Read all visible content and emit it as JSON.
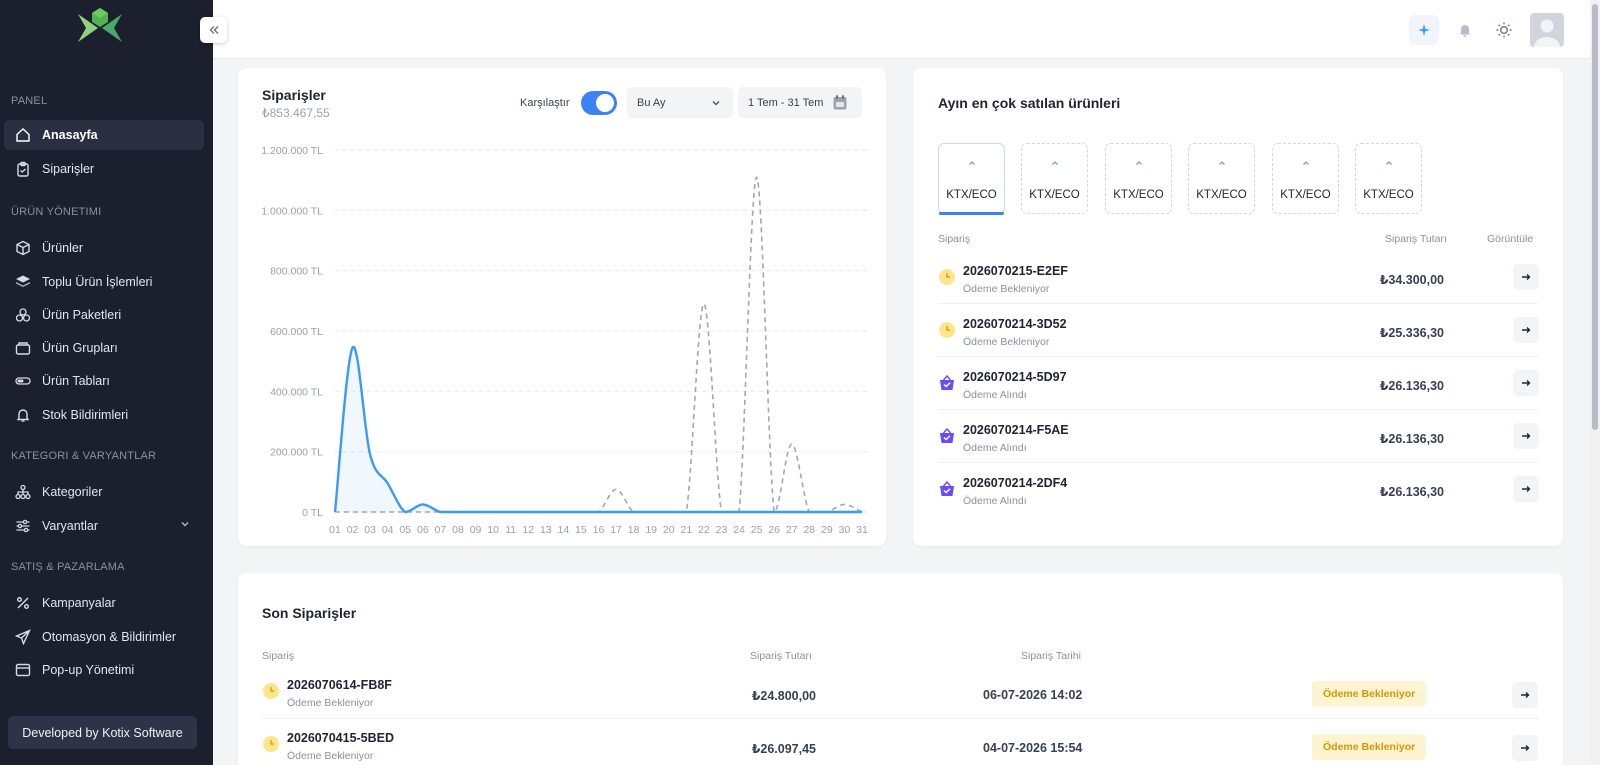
{
  "sidebar": {
    "sections": [
      {
        "label": "PANEL",
        "items": [
          {
            "label": "Anasayfa",
            "icon": "home-icon",
            "active": true
          },
          {
            "label": "Siparişler",
            "icon": "clipboard-icon"
          }
        ]
      },
      {
        "label": "ÜRÜN YÖNETIMI",
        "items": [
          {
            "label": "Ürünler",
            "icon": "box-icon"
          },
          {
            "label": "Toplu Ürün İşlemleri",
            "icon": "layers-icon"
          },
          {
            "label": "Ürün Paketleri",
            "icon": "package-icon"
          },
          {
            "label": "Ürün Grupları",
            "icon": "folder-icon"
          },
          {
            "label": "Ürün Tabları",
            "icon": "tabs-icon"
          },
          {
            "label": "Stok Bildirimleri",
            "icon": "bell-icon"
          }
        ]
      },
      {
        "label": "KATEGORI & VARYANTLAR",
        "items": [
          {
            "label": "Kategoriler",
            "icon": "hierarchy-icon"
          },
          {
            "label": "Varyantlar",
            "icon": "sliders-icon",
            "expandable": true
          }
        ]
      },
      {
        "label": "SATIŞ & PAZARLAMA",
        "items": [
          {
            "label": "Kampanyalar",
            "icon": "percent-icon"
          },
          {
            "label": "Otomasyon & Bildirimler",
            "icon": "send-icon"
          },
          {
            "label": "Pop-up Yönetimi",
            "icon": "window-icon"
          }
        ]
      }
    ],
    "developer": "Developed by Kotix Software"
  },
  "orders_chart": {
    "title": "Siparişler",
    "total": "₺853.467,55",
    "compare_label": "Karşılaştır",
    "compare_on": true,
    "period": "Bu Ay",
    "date_range": "1 Tem - 31 Tem"
  },
  "chart_data": {
    "type": "line",
    "x": [
      "01",
      "02",
      "03",
      "04",
      "05",
      "06",
      "07",
      "08",
      "09",
      "10",
      "11",
      "12",
      "13",
      "14",
      "15",
      "16",
      "17",
      "18",
      "19",
      "20",
      "21",
      "22",
      "23",
      "24",
      "25",
      "26",
      "27",
      "28",
      "29",
      "30",
      "31"
    ],
    "yticks": [
      "1.200.000 TL",
      "1.000.000 TL",
      "800.000 TL",
      "600.000 TL",
      "400.000 TL",
      "200.000 TL",
      "0 TL"
    ],
    "ylim": [
      0,
      1200000
    ],
    "grid": true,
    "series": [
      {
        "style": "solid",
        "color": "#3b9af5",
        "values": [
          0,
          545000,
          190000,
          95000,
          0,
          25000,
          0,
          0,
          0,
          0,
          0,
          0,
          0,
          0,
          0,
          0,
          0,
          0,
          0,
          0,
          0,
          0,
          0,
          0,
          0,
          0,
          0,
          0,
          0,
          0,
          0
        ]
      },
      {
        "style": "dashed",
        "color": "#a3a6ae",
        "values": [
          0,
          0,
          0,
          0,
          0,
          0,
          0,
          0,
          0,
          0,
          0,
          0,
          0,
          0,
          0,
          0,
          75000,
          0,
          0,
          0,
          0,
          690000,
          0,
          0,
          1110000,
          0,
          225000,
          0,
          0,
          25000,
          0
        ]
      }
    ]
  },
  "top_products": {
    "title": "Ayın en çok satılan ürünleri",
    "tabs": [
      "KTX/ECO",
      "KTX/ECO",
      "KTX/ECO",
      "KTX/ECO",
      "KTX/ECO",
      "KTX/ECO"
    ],
    "headers": {
      "order": "Sipariş",
      "amount": "Sipariş Tutarı",
      "view": "Görüntüle"
    },
    "rows": [
      {
        "id": "2026070215-E2EF",
        "status": "Ödeme Bekleniyor",
        "amount": "₺34.300,00",
        "type": "pending"
      },
      {
        "id": "2026070214-3D52",
        "status": "Ödeme Bekleniyor",
        "amount": "₺25.336,30",
        "type": "pending"
      },
      {
        "id": "2026070214-5D97",
        "status": "Ödeme Alındı",
        "amount": "₺26.136,30",
        "type": "paid"
      },
      {
        "id": "2026070214-F5AE",
        "status": "Ödeme Alındı",
        "amount": "₺26.136,30",
        "type": "paid"
      },
      {
        "id": "2026070214-2DF4",
        "status": "Ödeme Alındı",
        "amount": "₺26.136,30",
        "type": "paid"
      }
    ]
  },
  "recent_orders": {
    "title": "Son Siparişler",
    "headers": {
      "order": "Sipariş",
      "amount": "Sipariş Tutarı",
      "date": "Sipariş Tarihi"
    },
    "rows": [
      {
        "id": "2026070614-FB8F",
        "status": "Ödeme Bekleniyor",
        "amount": "₺24.800,00",
        "date": "06-07-2026 14:02",
        "badge": "Ödeme Bekleniyor"
      },
      {
        "id": "2026070415-5BED",
        "status": "Ödeme Bekleniyor",
        "amount": "₺26.097,45",
        "date": "04-07-2026 15:54",
        "badge": "Ödeme Bekleniyor"
      }
    ]
  },
  "colors": {
    "accent": "#3b82f6",
    "sidebar": "#1b1f2e",
    "pending": "#fde68a",
    "paid": "#6d4aff"
  }
}
